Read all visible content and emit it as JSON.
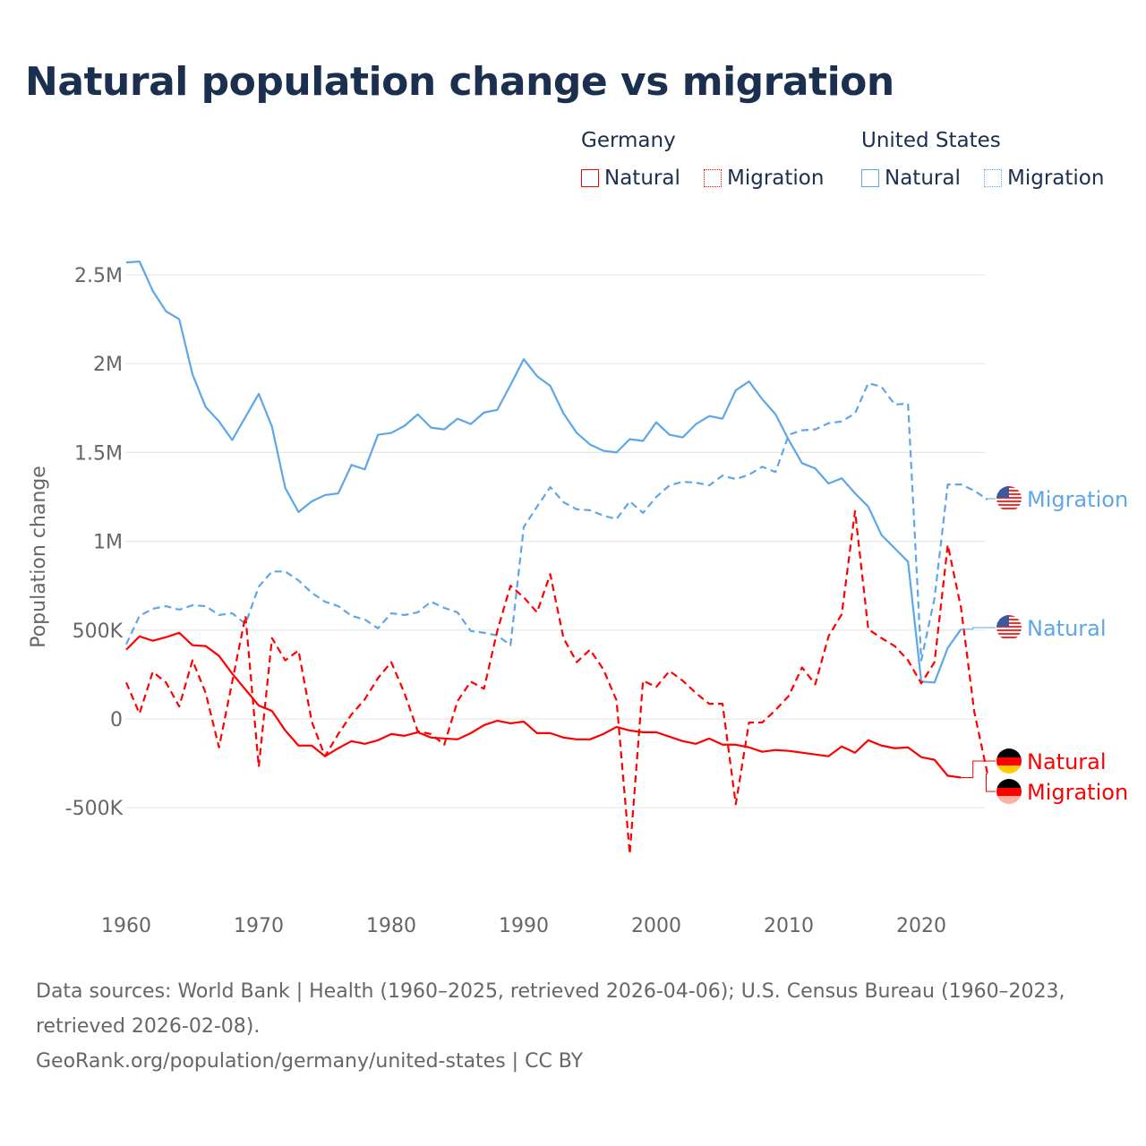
{
  "title": "Natural population change vs migration",
  "legend": {
    "groups": [
      {
        "name": "Germany",
        "items": [
          "Natural",
          "Migration"
        ],
        "color": "#ff0000"
      },
      {
        "name": "United States",
        "items": [
          "Natural",
          "Migration"
        ],
        "color": "#5ea6e8"
      }
    ]
  },
  "footer": {
    "sources": "Data sources: World Bank | Health (1960–2025, retrieved 2026-04-06); U.S. Census Bureau (1960–2023, retrieved 2026-02-08).",
    "link": "GeoRank.org/population/germany/united-states | CC BY"
  },
  "chart_data": {
    "type": "line",
    "title": "Natural population change vs migration",
    "xlabel": "",
    "ylabel": "Population change",
    "xlim": [
      1960,
      2025
    ],
    "ylim": [
      -1000000,
      2700000
    ],
    "x_ticks": [
      1960,
      1970,
      1980,
      1990,
      2000,
      2010,
      2020
    ],
    "x_tick_labels": [
      "1960",
      "1970",
      "1980",
      "1990",
      "2000",
      "2010",
      "2020"
    ],
    "y_ticks": [
      -500000,
      0,
      500000,
      1000000,
      1500000,
      2000000,
      2500000
    ],
    "y_tick_labels": [
      "-500K",
      "0",
      "500K",
      "1M",
      "1.5M",
      "2M",
      "2.5M"
    ],
    "grid": true,
    "legend_position": "top-right",
    "series": [
      {
        "name": "United States Natural",
        "label": "Natural",
        "country": "United States",
        "color": "#5ea6e8",
        "dash": false,
        "start": 1960,
        "values_k": [
          2570,
          2575,
          2410,
          2295,
          2250,
          1940,
          1755,
          1675,
          1570,
          1700,
          1830,
          1645,
          1300,
          1165,
          1225,
          1260,
          1270,
          1430,
          1405,
          1600,
          1610,
          1650,
          1715,
          1640,
          1630,
          1690,
          1660,
          1725,
          1740,
          1880,
          2025,
          1930,
          1875,
          1720,
          1610,
          1545,
          1510,
          1500,
          1575,
          1565,
          1670,
          1600,
          1585,
          1660,
          1705,
          1690,
          1850,
          1900,
          1800,
          1715,
          1570,
          1440,
          1410,
          1325,
          1355,
          1270,
          1195,
          1035,
          960,
          885,
          210,
          205,
          400,
          505
        ]
      },
      {
        "name": "United States Migration",
        "label": "Migration",
        "country": "United States",
        "color": "#5ea6e8",
        "dash": true,
        "start": 1960,
        "values_k": [
          420,
          580,
          620,
          635,
          615,
          640,
          635,
          585,
          595,
          535,
          745,
          830,
          830,
          780,
          710,
          660,
          635,
          580,
          560,
          510,
          595,
          585,
          600,
          660,
          625,
          600,
          495,
          485,
          470,
          415,
          1080,
          1195,
          1305,
          1220,
          1180,
          1175,
          1145,
          1125,
          1225,
          1160,
          1250,
          1315,
          1335,
          1330,
          1315,
          1370,
          1350,
          1375,
          1420,
          1390,
          1600,
          1625,
          1630,
          1665,
          1675,
          1720,
          1890,
          1870,
          1770,
          1775,
          330,
          680,
          1320,
          1320,
          1285,
          1235
        ]
      },
      {
        "name": "Germany Natural",
        "label": "Natural",
        "country": "Germany",
        "color": "#ff0000",
        "dash": false,
        "start": 1960,
        "values_k": [
          390,
          465,
          440,
          460,
          485,
          415,
          410,
          355,
          255,
          165,
          75,
          45,
          -65,
          -150,
          -150,
          -210,
          -165,
          -125,
          -140,
          -120,
          -85,
          -95,
          -75,
          -105,
          -110,
          -115,
          -80,
          -35,
          -10,
          -25,
          -15,
          -80,
          -80,
          -105,
          -115,
          -115,
          -85,
          -45,
          -65,
          -75,
          -75,
          -100,
          -125,
          -140,
          -110,
          -145,
          -145,
          -160,
          -185,
          -175,
          -180,
          -190,
          -200,
          -210,
          -155,
          -190,
          -120,
          -150,
          -165,
          -160,
          -215,
          -230,
          -320,
          -330
        ]
      },
      {
        "name": "Germany Migration",
        "label": "Migration",
        "country": "Germany",
        "color": "#ff0000",
        "dash": true,
        "start": 1960,
        "values_k": [
          205,
          30,
          265,
          205,
          70,
          330,
          145,
          -160,
          210,
          580,
          -270,
          455,
          330,
          385,
          -15,
          -210,
          -85,
          25,
          110,
          230,
          320,
          145,
          -70,
          -85,
          -145,
          100,
          210,
          170,
          495,
          750,
          685,
          600,
          815,
          455,
          320,
          390,
          280,
          105,
          -760,
          215,
          180,
          270,
          215,
          145,
          85,
          85,
          -480,
          -20,
          -20,
          50,
          130,
          290,
          195,
          465,
          590,
          1170,
          505,
          455,
          410,
          330,
          200,
          320,
          980,
          625,
          40,
          -310
        ]
      }
    ]
  }
}
